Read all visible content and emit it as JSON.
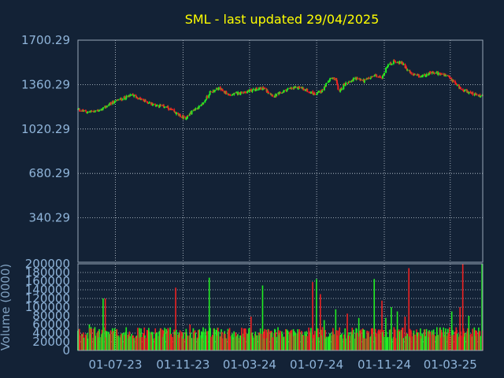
{
  "title": "SML - last updated 29/04/2025",
  "chart_data": [
    {
      "type": "candlestick",
      "ylim": [
        0.29,
        1700.29
      ],
      "yticks": [
        "1700.29",
        "1360.29",
        "1020.29",
        "680.29",
        "340.29"
      ],
      "ytick_values": [
        1700.29,
        1360.29,
        1020.29,
        680.29,
        340.29
      ],
      "xticks": [
        "01-07-23",
        "01-11-23",
        "01-03-24",
        "01-07-24",
        "01-11-24",
        "01-03-25"
      ],
      "xtick_dates": [
        "2023-07-01",
        "2023-11-01",
        "2024-03-01",
        "2024-07-01",
        "2024-11-01",
        "2025-03-01"
      ],
      "x_range": [
        "2023-04-24",
        "2025-04-29"
      ],
      "grid": true,
      "colors": {
        "up": "#22ee22",
        "down": "#ee2222",
        "grid": "#c8d2dc",
        "background": "#132236"
      },
      "price_path": [
        [
          "2023-04-24",
          1170
        ],
        [
          "2023-05-10",
          1150
        ],
        [
          "2023-06-05",
          1165
        ],
        [
          "2023-06-20",
          1210
        ],
        [
          "2023-07-05",
          1240
        ],
        [
          "2023-08-01",
          1280
        ],
        [
          "2023-08-20",
          1240
        ],
        [
          "2023-09-10",
          1205
        ],
        [
          "2023-10-01",
          1190
        ],
        [
          "2023-10-25",
          1125
        ],
        [
          "2023-11-05",
          1100
        ],
        [
          "2023-11-20",
          1165
        ],
        [
          "2023-12-05",
          1200
        ],
        [
          "2023-12-20",
          1300
        ],
        [
          "2024-01-05",
          1330
        ],
        [
          "2024-01-25",
          1280
        ],
        [
          "2024-02-15",
          1300
        ],
        [
          "2024-03-10",
          1320
        ],
        [
          "2024-03-25",
          1335
        ],
        [
          "2024-04-15",
          1270
        ],
        [
          "2024-05-10",
          1325
        ],
        [
          "2024-06-01",
          1340
        ],
        [
          "2024-06-25",
          1290
        ],
        [
          "2024-07-10",
          1310
        ],
        [
          "2024-07-25",
          1400
        ],
        [
          "2024-08-05",
          1410
        ],
        [
          "2024-08-10",
          1300
        ],
        [
          "2024-08-20",
          1360
        ],
        [
          "2024-09-10",
          1410
        ],
        [
          "2024-09-25",
          1390
        ],
        [
          "2024-10-15",
          1430
        ],
        [
          "2024-10-28",
          1410
        ],
        [
          "2024-11-05",
          1500
        ],
        [
          "2024-11-20",
          1540
        ],
        [
          "2024-12-05",
          1520
        ],
        [
          "2024-12-20",
          1440
        ],
        [
          "2025-01-05",
          1420
        ],
        [
          "2025-01-25",
          1450
        ],
        [
          "2025-02-10",
          1445
        ],
        [
          "2025-02-25",
          1420
        ],
        [
          "2025-03-20",
          1330
        ],
        [
          "2025-04-10",
          1290
        ],
        [
          "2025-04-29",
          1270
        ]
      ]
    },
    {
      "type": "bar",
      "ylabel": "Volume (0000)",
      "ylim": [
        0,
        200000
      ],
      "yticks": [
        "200000",
        "180000",
        "160000",
        "140000",
        "120000",
        "100000",
        "80000",
        "60000",
        "40000",
        "20000",
        "0"
      ],
      "ytick_values": [
        200000,
        180000,
        160000,
        140000,
        120000,
        100000,
        80000,
        60000,
        40000,
        20000,
        0
      ],
      "typical_volume": 45000,
      "spikes": [
        [
          "2023-05-15",
          60000
        ],
        [
          "2023-06-10",
          120000
        ],
        [
          "2023-06-14",
          120000
        ],
        [
          "2023-09-25",
          48000
        ],
        [
          "2023-10-20",
          145000
        ],
        [
          "2023-11-15",
          60000
        ],
        [
          "2023-12-20",
          168000
        ],
        [
          "2024-03-05",
          78000
        ],
        [
          "2024-03-25",
          150000
        ],
        [
          "2024-06-25",
          158000
        ],
        [
          "2024-06-30",
          165000
        ],
        [
          "2024-07-08",
          130000
        ],
        [
          "2024-07-15",
          70000
        ],
        [
          "2024-08-05",
          95000
        ],
        [
          "2024-08-25",
          85000
        ],
        [
          "2024-09-15",
          75000
        ],
        [
          "2024-10-15",
          165000
        ],
        [
          "2024-10-28",
          115000
        ],
        [
          "2024-11-05",
          75000
        ],
        [
          "2024-11-15",
          100000
        ],
        [
          "2024-11-25",
          90000
        ],
        [
          "2024-12-10",
          78000
        ],
        [
          "2024-12-15",
          190000
        ],
        [
          "2025-03-05",
          90000
        ],
        [
          "2025-03-20",
          100000
        ],
        [
          "2025-03-25",
          200000
        ],
        [
          "2025-04-05",
          80000
        ],
        [
          "2025-04-29",
          200000
        ]
      ]
    }
  ]
}
